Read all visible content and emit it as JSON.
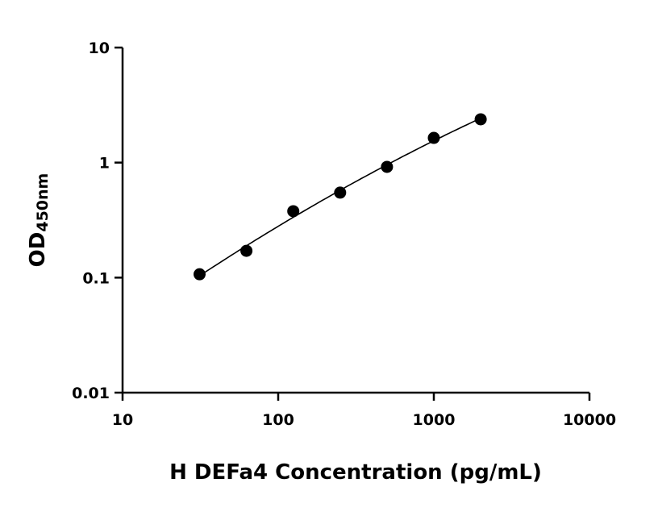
{
  "chart_data": {
    "type": "scatter",
    "title": "",
    "xlabel": "H DEFa4 Concentration (pg/mL)",
    "ylabel": "OD",
    "ylabel_subscript": "450nm",
    "xscale": "log",
    "yscale": "log",
    "xlim": [
      10,
      10000
    ],
    "ylim": [
      0.01,
      10
    ],
    "x_ticks": [
      "10",
      "100",
      "1000",
      "10000"
    ],
    "y_ticks": [
      "0.01",
      "0.1",
      "1",
      "10"
    ],
    "grid": false,
    "legend": "none",
    "marker_color": "#000000",
    "fit_line": "smooth curve fit through points",
    "x": [
      31.25,
      62.5,
      125,
      250,
      500,
      1000,
      2000
    ],
    "y": [
      0.107,
      0.171,
      0.378,
      0.548,
      0.918,
      1.64,
      2.38
    ]
  }
}
